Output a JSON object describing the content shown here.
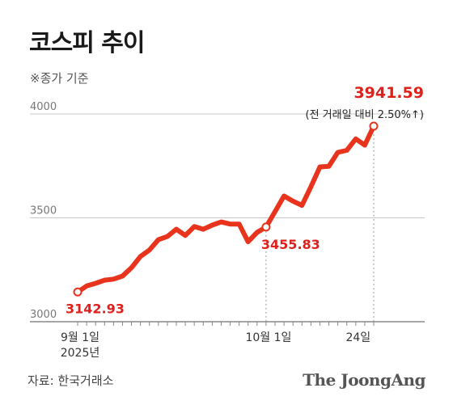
{
  "header": {
    "title": "코스피 추이",
    "subtitle": "※종가 기준"
  },
  "footer": {
    "source": "자료: 한국거래소",
    "brand": "The JoongAng"
  },
  "colors": {
    "line": "#e8341c",
    "label": "#e0201a",
    "grid": "#c8c8c8",
    "axis": "#888888"
  },
  "chart_data": {
    "type": "line",
    "title": "코스피 추이",
    "xlabel": "",
    "ylabel": "",
    "ylim": [
      3000,
      4000
    ],
    "yticks": [
      3000,
      3500,
      4000
    ],
    "grid": true,
    "x_tick_labels": [
      {
        "index": 0,
        "label": "9월 1일",
        "sublabel": "2025년"
      },
      {
        "index": 21,
        "label": "10월 1일"
      },
      {
        "index": 31,
        "label": "24일"
      }
    ],
    "series": [
      {
        "values": [
          3142.93,
          3172,
          3185,
          3200,
          3205,
          3220,
          3260,
          3314,
          3345,
          3395,
          3410,
          3445,
          3415,
          3458,
          3445,
          3465,
          3480,
          3470,
          3470,
          3385,
          3430,
          3455.83,
          3530,
          3605,
          3580,
          3560,
          3650,
          3745,
          3748,
          3815,
          3825,
          3880,
          3850,
          3941.59
        ]
      }
    ],
    "annotations": [
      {
        "index": 0,
        "value": "3142.93"
      },
      {
        "index": 21,
        "value": "3455.83"
      },
      {
        "index": 33,
        "value": "3941.59",
        "note": "(전 거래일 대비 2.50%↑)"
      }
    ]
  }
}
